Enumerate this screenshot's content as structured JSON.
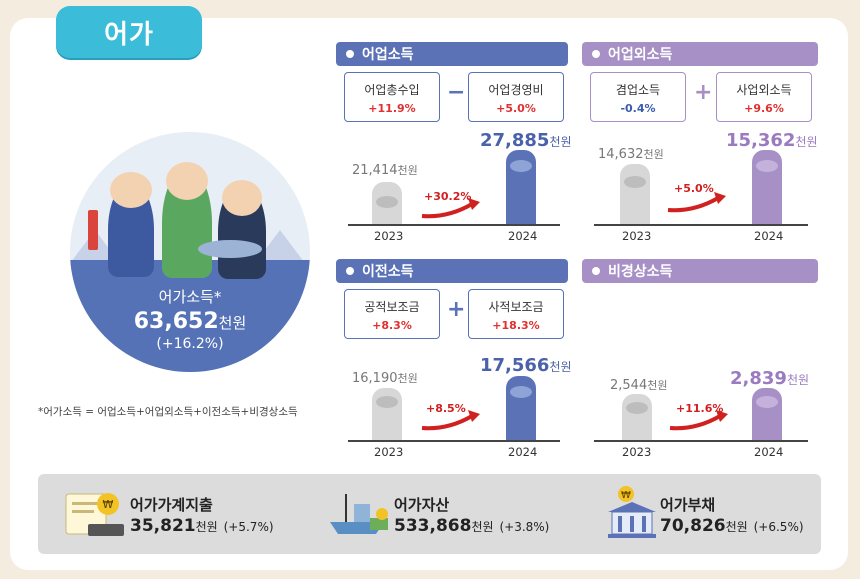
{
  "title": "어가",
  "circle": {
    "label": "어가소득*",
    "value": "63,652",
    "unit": "천원",
    "change": "(+16.2%)"
  },
  "footnote": "*어가소득 = 어업소득+어업외소득+이전소득+비경상소득",
  "sections": {
    "fishing": {
      "header": "어업소득",
      "box1": {
        "label": "어업총수입",
        "pct": "+11.9%"
      },
      "op": "−",
      "box2": {
        "label": "어업경영비",
        "pct": "+5.0%"
      },
      "v2023": "21,414",
      "v2024": "27,885",
      "unit": "천원",
      "growth": "+30.2%"
    },
    "nonfishing": {
      "header": "어업외소득",
      "box1": {
        "label": "겸업소득",
        "pct": "-0.4%"
      },
      "op": "+",
      "box2": {
        "label": "사업외소득",
        "pct": "+9.6%"
      },
      "v2023": "14,632",
      "v2024": "15,362",
      "unit": "천원",
      "growth": "+5.0%"
    },
    "transfer": {
      "header": "이전소득",
      "box1": {
        "label": "공적보조금",
        "pct": "+8.3%"
      },
      "op": "+",
      "box2": {
        "label": "사적보조금",
        "pct": "+18.3%"
      },
      "v2023": "16,190",
      "v2024": "17,566",
      "unit": "천원",
      "growth": "+8.5%"
    },
    "irregular": {
      "header": "비경상소득",
      "v2023": "2,544",
      "v2024": "2,839",
      "unit": "천원",
      "growth": "+11.6%"
    }
  },
  "year_labels": {
    "y1": "2023",
    "y2": "2024"
  },
  "bottom": {
    "expense": {
      "label": "어가가계지출",
      "value": "35,821",
      "unit": "천원",
      "change": "(+5.7%)"
    },
    "assets": {
      "label": "어가자산",
      "value": "533,868",
      "unit": "천원",
      "change": "(+3.8%)"
    },
    "debt": {
      "label": "어가부채",
      "value": "70,826",
      "unit": "천원",
      "change": "(+6.5%)"
    }
  },
  "colors": {
    "blue": "#5b72b6",
    "purple": "#a690c6",
    "red": "#e03030",
    "tab": "#3bbcd8"
  }
}
